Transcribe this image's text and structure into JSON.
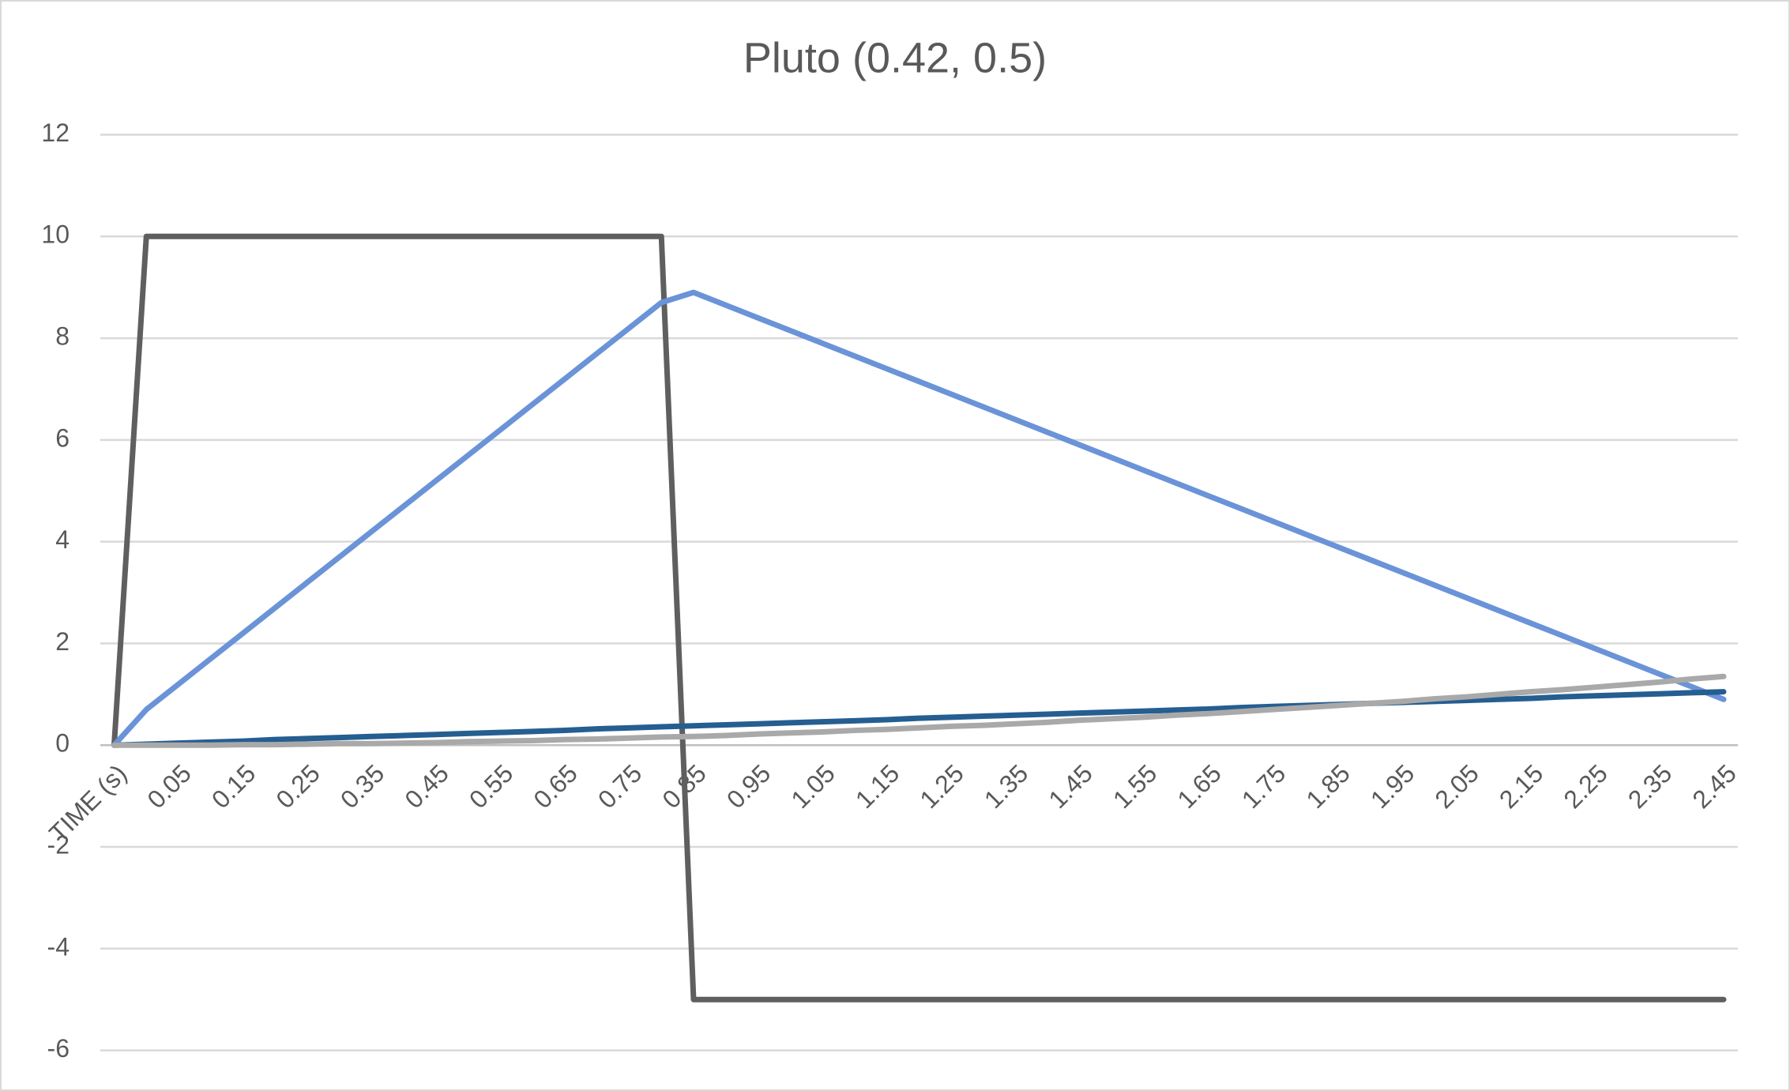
{
  "chart_data": {
    "type": "line",
    "title": "Pluto (0.42, 0.5)",
    "categories": [
      "TIME (s)",
      null,
      "0.05",
      null,
      "0.15",
      null,
      "0.25",
      null,
      "0.35",
      null,
      "0.45",
      null,
      "0.55",
      null,
      "0.65",
      null,
      "0.75",
      null,
      "0.85",
      null,
      "0.95",
      null,
      "1.05",
      null,
      "1.15",
      null,
      "1.25",
      null,
      "1.35",
      null,
      "1.45",
      null,
      "1.55",
      null,
      "1.65",
      null,
      "1.75",
      null,
      "1.85",
      null,
      "1.95",
      null,
      "2.05",
      null,
      "2.15",
      null,
      "2.25",
      null,
      "2.35",
      null,
      "2.45"
    ],
    "series": [
      {
        "color": "#5f5f5f",
        "values": [
          0,
          10,
          10,
          10,
          10,
          10,
          10,
          10,
          10,
          10,
          10,
          10,
          10,
          10,
          10,
          10,
          10,
          10,
          -5,
          -5,
          -5,
          -5,
          -5,
          -5,
          -5,
          -5,
          -5,
          -5,
          -5,
          -5,
          -5,
          -5,
          -5,
          -5,
          -5,
          -5,
          -5,
          -5,
          -5,
          -5,
          -5,
          -5,
          -5,
          -5,
          -5,
          -5,
          -5,
          -5,
          -5,
          -5,
          -5
        ]
      },
      {
        "color": "#6a93d8",
        "values": [
          0,
          0.7,
          1.2,
          1.7,
          2.2,
          2.7,
          3.2,
          3.7,
          4.2,
          4.7,
          5.2,
          5.7,
          6.2,
          6.7,
          7.2,
          7.7,
          8.2,
          8.7,
          8.9,
          8.65,
          8.4,
          8.15,
          7.9,
          7.65,
          7.4,
          7.15,
          6.9,
          6.65,
          6.4,
          6.15,
          5.9,
          5.65,
          5.4,
          5.15,
          4.9,
          4.65,
          4.4,
          4.15,
          3.9,
          3.65,
          3.4,
          3.15,
          2.9,
          2.65,
          2.4,
          2.15,
          1.9,
          1.65,
          1.4,
          1.15,
          0.9
        ]
      },
      {
        "color": "#255e91",
        "values": [
          0,
          0.02,
          0.04,
          0.06,
          0.08,
          0.11,
          0.13,
          0.15,
          0.17,
          0.19,
          0.21,
          0.23,
          0.25,
          0.27,
          0.29,
          0.32,
          0.34,
          0.36,
          0.38,
          0.4,
          0.42,
          0.44,
          0.46,
          0.48,
          0.5,
          0.53,
          0.55,
          0.57,
          0.59,
          0.61,
          0.63,
          0.65,
          0.67,
          0.69,
          0.71,
          0.74,
          0.76,
          0.78,
          0.8,
          0.82,
          0.84,
          0.86,
          0.88,
          0.9,
          0.92,
          0.95,
          0.97,
          0.99,
          1.01,
          1.03,
          1.05
        ]
      },
      {
        "color": "#a9a9a9",
        "values": [
          0,
          0,
          0,
          0,
          0.01,
          0.01,
          0.02,
          0.03,
          0.03,
          0.04,
          0.05,
          0.07,
          0.08,
          0.09,
          0.11,
          0.12,
          0.14,
          0.16,
          0.17,
          0.19,
          0.22,
          0.24,
          0.26,
          0.29,
          0.31,
          0.34,
          0.37,
          0.39,
          0.42,
          0.45,
          0.49,
          0.52,
          0.55,
          0.59,
          0.62,
          0.66,
          0.7,
          0.74,
          0.78,
          0.82,
          0.86,
          0.91,
          0.95,
          1,
          1.05,
          1.09,
          1.14,
          1.19,
          1.24,
          1.3,
          1.35
        ]
      }
    ],
    "ylim": [
      -6,
      12
    ],
    "yticks": [
      -6,
      -4,
      -2,
      0,
      2,
      4,
      6,
      8,
      10,
      12
    ],
    "grid": true
  }
}
